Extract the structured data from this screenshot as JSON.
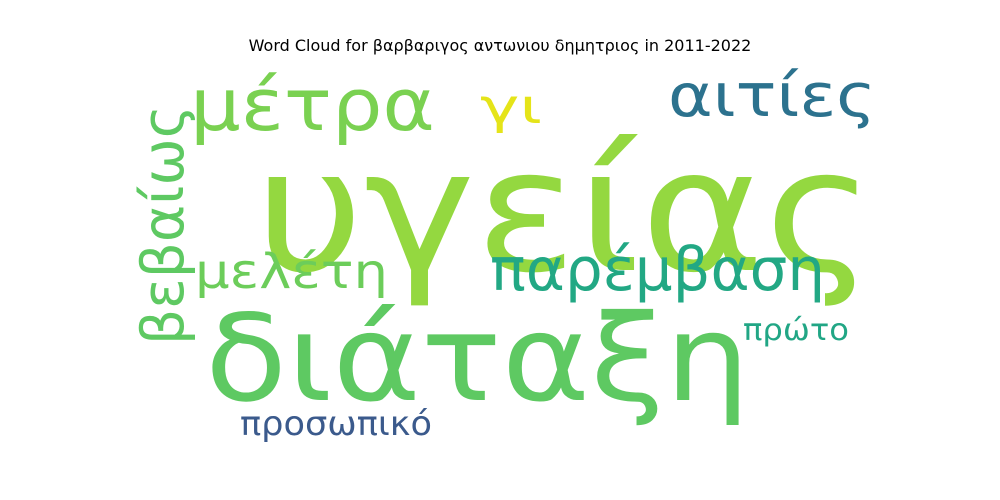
{
  "chart_data": {
    "type": "wordcloud",
    "title": "Word Cloud for βαρβαριγος αντωνιου δημητριος in 2011-2022",
    "words": [
      {
        "text": "υγείας",
        "color": "#94d840"
      },
      {
        "text": "διάταξη",
        "color": "#5ec962"
      },
      {
        "text": "μέτρα",
        "color": "#7ad151"
      },
      {
        "text": "αιτίες",
        "color": "#2c728e"
      },
      {
        "text": "παρέμβαση",
        "color": "#22a884"
      },
      {
        "text": "βεβαίως",
        "color": "#5ec962"
      },
      {
        "text": "μελέτη",
        "color": "#6ccd5a"
      },
      {
        "text": "γι",
        "color": "#e5e419"
      },
      {
        "text": "πρώτο",
        "color": "#21a685"
      },
      {
        "text": "προσωπικό",
        "color": "#3b5a8c"
      }
    ]
  }
}
